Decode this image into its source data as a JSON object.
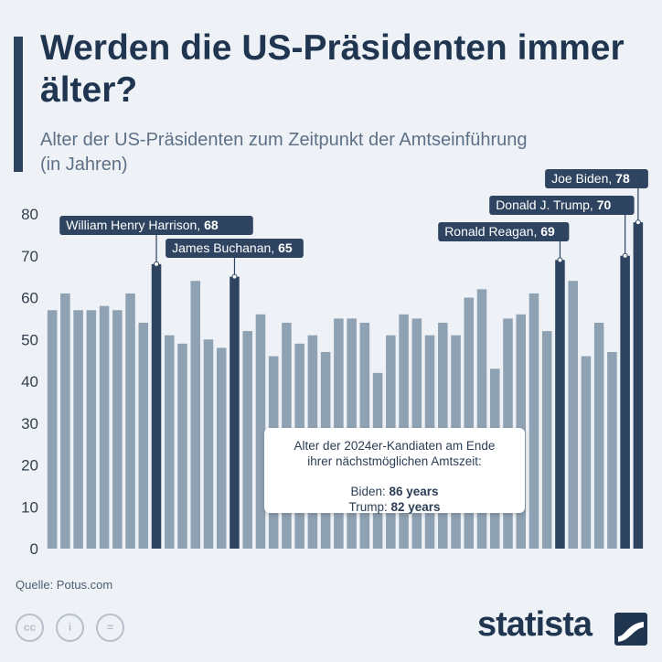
{
  "title": "Werden die US-Präsidenten immer älter?",
  "subtitle": "Alter der US-Präsidenten zum Zeitpunkt der Amtseinführung (in Jahren)",
  "note": {
    "line1": "Alter der 2024er-Kandiaten am Ende",
    "line2": "ihrer nächstmöglichen Amtszeit:",
    "biden_label": "Biden:",
    "biden_value": "86 years",
    "trump_label": "Trump:",
    "trump_value": "82 years"
  },
  "source": "Quelle: Potus.com",
  "license_icons": [
    "cc-icon",
    "by-icon",
    "nd-icon"
  ],
  "license_glyphs": [
    "cc",
    "i",
    "="
  ],
  "brand": "statista",
  "colors": {
    "bar": "#8fa2b3",
    "highlight": "#2e4460",
    "background": "#eef2f6"
  },
  "chart_data": {
    "type": "bar",
    "ylim": [
      0,
      80
    ],
    "yticks": [
      0,
      10,
      20,
      30,
      40,
      50,
      60,
      70,
      80
    ],
    "grid": false,
    "values": [
      57,
      61,
      57,
      57,
      58,
      57,
      61,
      54,
      68,
      51,
      49,
      64,
      50,
      48,
      65,
      52,
      56,
      46,
      54,
      49,
      51,
      47,
      55,
      55,
      54,
      42,
      51,
      56,
      55,
      51,
      54,
      51,
      60,
      62,
      43,
      55,
      56,
      61,
      52,
      69,
      64,
      46,
      54,
      47,
      70,
      78
    ],
    "highlights": [
      {
        "index": 8,
        "label": "William Henry Harrison, ",
        "value": "68"
      },
      {
        "index": 14,
        "label": "James Buchanan, ",
        "value": "65"
      },
      {
        "index": 39,
        "label": "Ronald Reagan, ",
        "value": "69"
      },
      {
        "index": 44,
        "label": "Donald J. Trump, ",
        "value": "70"
      },
      {
        "index": 45,
        "label": "Joe Biden, ",
        "value": "78"
      }
    ]
  }
}
